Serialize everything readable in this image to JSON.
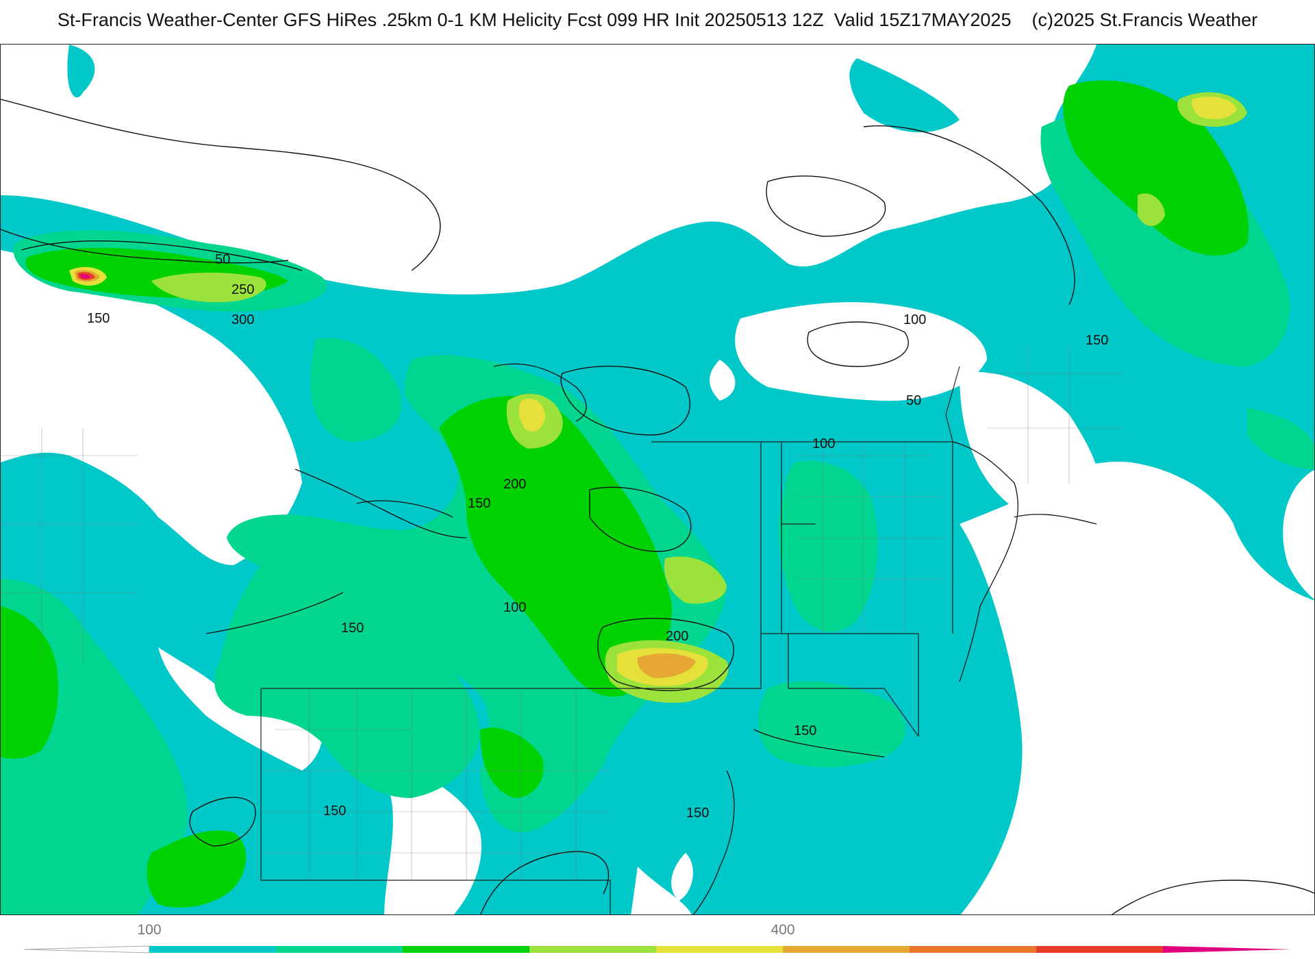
{
  "header": {
    "title": "St-Francis Weather-Center GFS HiRes .25km 0-1 KM Helicity Fcst 099 HR Init 20250513 12Z  Valid 15Z17MAY2025    (c)2025 St.Francis Weather"
  },
  "map": {
    "contour_labels": [
      {
        "id": "c50-west",
        "text": "50"
      },
      {
        "id": "c250-west",
        "text": "250"
      },
      {
        "id": "c300-west",
        "text": "300"
      },
      {
        "id": "c150-west",
        "text": "150"
      },
      {
        "id": "c100-northeast",
        "text": "100"
      },
      {
        "id": "c50-northeast",
        "text": "50"
      },
      {
        "id": "c150-northeast",
        "text": "150"
      },
      {
        "id": "c100-vermont",
        "text": "100"
      },
      {
        "id": "c200-central",
        "text": "200"
      },
      {
        "id": "c150-central",
        "text": "150"
      },
      {
        "id": "c100-lake",
        "text": "100"
      },
      {
        "id": "c150-lake",
        "text": "150"
      },
      {
        "id": "c200-south",
        "text": "200"
      },
      {
        "id": "c150-connecticut",
        "text": "150"
      },
      {
        "id": "c150-pennsylvania",
        "text": "150"
      },
      {
        "id": "c150-newyork",
        "text": "150"
      }
    ],
    "colors": {
      "level_100": "#00c8c8",
      "level_150": "#00d68f",
      "level_200": "#00d100",
      "level_250": "#9be33a",
      "level_300": "#e6e03a",
      "level_350": "#e6a832",
      "level_400": "#e8782a",
      "level_450": "#e83c2a",
      "level_500": "#e0007f"
    }
  },
  "legend": {
    "tick_labels": [
      "100",
      "400"
    ],
    "bins": [
      "#00c8c8",
      "#00d68f",
      "#00d100",
      "#9be33a",
      "#e6e03a",
      "#e6a832",
      "#e8782a",
      "#e83c2a",
      "#e0007f"
    ]
  }
}
